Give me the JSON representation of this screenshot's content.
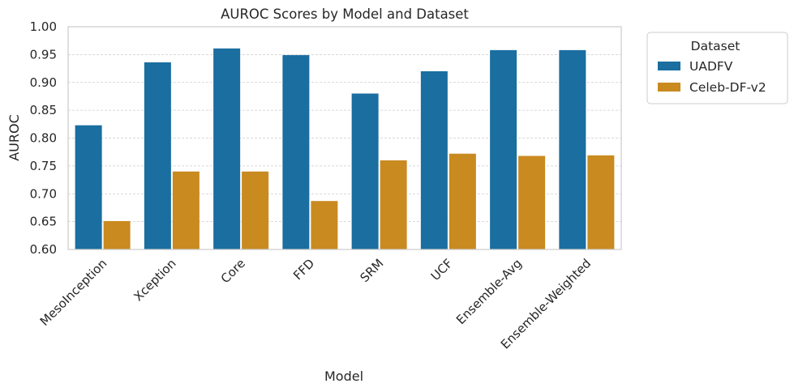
{
  "chart_data": {
    "type": "bar",
    "title": "AUROC Scores by Model and Dataset",
    "xlabel": "Model",
    "ylabel": "AUROC",
    "ylim": [
      0.6,
      1.0
    ],
    "yticks": [
      "0.60",
      "0.65",
      "0.70",
      "0.75",
      "0.80",
      "0.85",
      "0.90",
      "0.95",
      "1.00"
    ],
    "grid": true,
    "legend_title": "Dataset",
    "legend_position": "outside-top-right",
    "categories": [
      "MesoInception",
      "Xception",
      "Core",
      "FFD",
      "SRM",
      "UCF",
      "Ensemble-Avg",
      "Ensemble-Weighted"
    ],
    "series": [
      {
        "name": "UADFV",
        "color": "#1a6ea0",
        "values": [
          0.823,
          0.936,
          0.961,
          0.949,
          0.88,
          0.92,
          0.958,
          0.958
        ]
      },
      {
        "name": "Celeb-DF-v2",
        "color": "#c98a20",
        "values": [
          0.651,
          0.74,
          0.74,
          0.687,
          0.76,
          0.772,
          0.768,
          0.769
        ]
      }
    ]
  }
}
